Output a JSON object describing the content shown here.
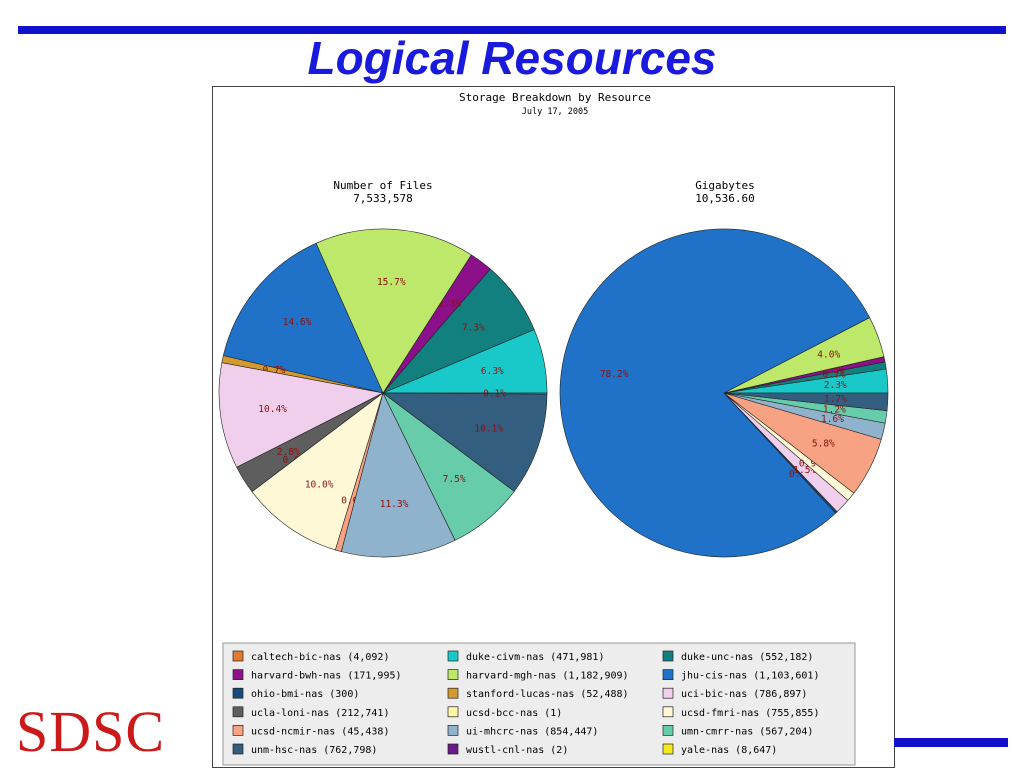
{
  "slide": {
    "title": "Logical Resources",
    "logo_text": "SDSC",
    "colors": {
      "title": "#1a1adc",
      "rule": "#1111cc",
      "logo": "#cc1a1a"
    }
  },
  "chart_data": {
    "type": "pie",
    "title": "Storage Breakdown by Resource",
    "subtitle": "July 17, 2005",
    "pies": [
      {
        "title": "Number of Files",
        "total": "7,533,578",
        "slices": [
          {
            "resource": "duke-civm-nas",
            "value": 6.3,
            "label": "6.3%"
          },
          {
            "resource": "duke-unc-nas",
            "value": 7.3,
            "label": "7.3%"
          },
          {
            "resource": "harvard-bwh-nas",
            "value": 2.3,
            "label": "2.3%"
          },
          {
            "resource": "harvard-mgh-nas",
            "value": 15.7,
            "label": "15.7%"
          },
          {
            "resource": "jhu-cis-nas",
            "value": 14.6,
            "label": "14.6%"
          },
          {
            "resource": "stanford-lucas-nas",
            "value": 0.7,
            "label": "0.7%"
          },
          {
            "resource": "uci-bic-nas",
            "value": 10.4,
            "label": "10.4%"
          },
          {
            "resource": "ucla-loni-nas",
            "value": 2.8,
            "label": "2.8%"
          },
          {
            "resource": "ucsd-bcc-nas",
            "value": 0.0,
            "label": "0.0%"
          },
          {
            "resource": "ucsd-fmri-nas",
            "value": 10.0,
            "label": "10.0%"
          },
          {
            "resource": "ucsd-ncmir-nas",
            "value": 0.6,
            "label": "0.6%"
          },
          {
            "resource": "ui-mhcrc-nas",
            "value": 11.3,
            "label": "11.3%"
          },
          {
            "resource": "umn-cmrr-nas",
            "value": 7.5,
            "label": "7.5%"
          },
          {
            "resource": "unm-hsc-nas",
            "value": 10.1,
            "label": "10.1%"
          },
          {
            "resource": "caltech-bic-nas",
            "value": 0.1,
            "label": "0.1%"
          }
        ]
      },
      {
        "title": "Gigabytes",
        "total": "10,536.60",
        "slices": [
          {
            "resource": "duke-civm-nas",
            "value": 2.3,
            "label": "2.3%"
          },
          {
            "resource": "duke-unc-nas",
            "value": 0.7,
            "label": "0.7%"
          },
          {
            "resource": "harvard-bwh-nas",
            "value": 0.5,
            "label": "0.5%"
          },
          {
            "resource": "harvard-mgh-nas",
            "value": 4.0,
            "label": "4.0%"
          },
          {
            "resource": "jhu-cis-nas",
            "value": 78.2,
            "label": "78.2%"
          },
          {
            "resource": "ohio-bmi-nas",
            "value": 0.2,
            "label": "0.2%"
          },
          {
            "resource": "uci-bic-nas",
            "value": 1.5,
            "label": "1.5%"
          },
          {
            "resource": "ucsd-fmri-nas",
            "value": 0.9,
            "label": "0.9%"
          },
          {
            "resource": "ucsd-ncmir-nas",
            "value": 5.8,
            "label": "5.8%"
          },
          {
            "resource": "ui-mhcrc-nas",
            "value": 1.6,
            "label": "1.6%"
          },
          {
            "resource": "umn-cmrr-nas",
            "value": 1.2,
            "label": "1.2%"
          },
          {
            "resource": "unm-hsc-nas",
            "value": 1.7,
            "label": "1.7%"
          }
        ]
      }
    ],
    "legend": {
      "placement": "bottom",
      "items": [
        {
          "label": "caltech-bic-nas (4,092)",
          "color": "#e07a30"
        },
        {
          "label": "duke-civm-nas (471,981)",
          "color": "#19c8c8"
        },
        {
          "label": "duke-unc-nas (552,182)",
          "color": "#138080"
        },
        {
          "label": "harvard-bwh-nas (171,995)",
          "color": "#8c1089"
        },
        {
          "label": "harvard-mgh-nas (1,182,909)",
          "color": "#bde86a"
        },
        {
          "label": "jhu-cis-nas (1,103,601)",
          "color": "#1f72c8"
        },
        {
          "label": "ohio-bmi-nas (300)",
          "color": "#174a7c"
        },
        {
          "label": "stanford-lucas-nas (52,488)",
          "color": "#d49a30"
        },
        {
          "label": "uci-bic-nas (786,897)",
          "color": "#efcfec"
        },
        {
          "label": "ucla-loni-nas (212,741)",
          "color": "#5e5e5e"
        },
        {
          "label": "ucsd-bcc-nas (1)",
          "color": "#fff6a8"
        },
        {
          "label": "ucsd-fmri-nas (755,855)",
          "color": "#fff8d6"
        },
        {
          "label": "ucsd-ncmir-nas (45,438)",
          "color": "#f7a383"
        },
        {
          "label": "ui-mhcrc-nas (854,447)",
          "color": "#8fb3cc"
        },
        {
          "label": "umn-cmrr-nas (567,204)",
          "color": "#66ccaa"
        },
        {
          "label": "unm-hsc-nas (762,798)",
          "color": "#345e80"
        },
        {
          "label": "wustl-cnl-nas (2)",
          "color": "#6a1a8a"
        },
        {
          "label": "yale-nas (8,647)",
          "color": "#f5ea20"
        }
      ]
    }
  }
}
